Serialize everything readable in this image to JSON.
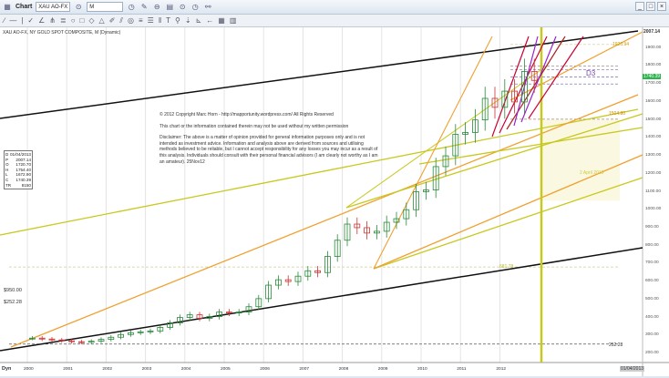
{
  "window": {
    "title": "Chart",
    "symbol": "XAU AO-FX",
    "period": "M"
  },
  "chart_header": "XAU AO-FX, NY GOLD SPOT COMPOSITE, M (Dynamic)",
  "notes": {
    "copyright": "© 2012 Copyright Marc Horn - http://mapportunity.wordpress.com/  All Rights Reserved",
    "usage": "This chart or the information contained therein may not be used without my written permission",
    "disclaimer": "Disclaimer: The above is a matter of opinion provided for general information purposes only and is not intended as investment advice. Information and analysis above are derived from sources and utilising methods believed to be reliable, but I cannot accept responsibility for any losses you may incur as a result of this analysis. Individuals should consult with their personal financial advisors (I am clearly not worthy as I am an amateur).    25Nov12"
  },
  "ohlc": [
    {
      "k": "D",
      "v": "01/04/2013"
    },
    {
      "k": "P",
      "v": "2007.14"
    },
    {
      "k": "O",
      "v": "1720.70"
    },
    {
      "k": "H",
      "v": "1754.40"
    },
    {
      "k": "L",
      "v": "1672.90"
    },
    {
      "k": "C",
      "v": "1740.39"
    },
    {
      "k": "TR",
      "v": "8150"
    }
  ],
  "left_labels": {
    "a": "$950.00",
    "b": "$252.28"
  },
  "price_axis": {
    "top": "2007.14",
    "last": "1740.39",
    "last_color": "#2bb54a",
    "ticks": [
      "1900.00",
      "1800.00",
      "1700.00",
      "1600.00",
      "1500.00",
      "1400.00",
      "1300.00",
      "1200.00",
      "1100.00",
      "1000.00",
      "900.00",
      "800.00",
      "700.00",
      "600.00",
      "500.00",
      "400.00",
      "300.00",
      "200.00"
    ]
  },
  "level_labels": {
    "l1": "1920.94",
    "l2": "1504.80",
    "l3": "252.28",
    "l4": "681.78",
    "d3": "D3",
    "tgt": "2 April 2015"
  },
  "time_axis": {
    "years": [
      "2000",
      "2001",
      "2002",
      "2003",
      "2004",
      "2005",
      "2006",
      "2007",
      "2008",
      "2009",
      "2010",
      "2011",
      "2012"
    ],
    "end_date": "01/04/2013",
    "dyn": "Dyn"
  },
  "price_series_quarterly": [
    285,
    280,
    275,
    270,
    265,
    262,
    268,
    278,
    290,
    305,
    315,
    320,
    325,
    345,
    370,
    400,
    415,
    395,
    405,
    430,
    425,
    430,
    460,
    505,
    580,
    610,
    600,
    630,
    660,
    650,
    740,
    830,
    920,
    900,
    870,
    880,
    930,
    950,
    1000,
    1100,
    1110,
    1240,
    1300,
    1420,
    1430,
    1500,
    1620,
    1570,
    1660,
    1600,
    1770,
    1720
  ]
}
